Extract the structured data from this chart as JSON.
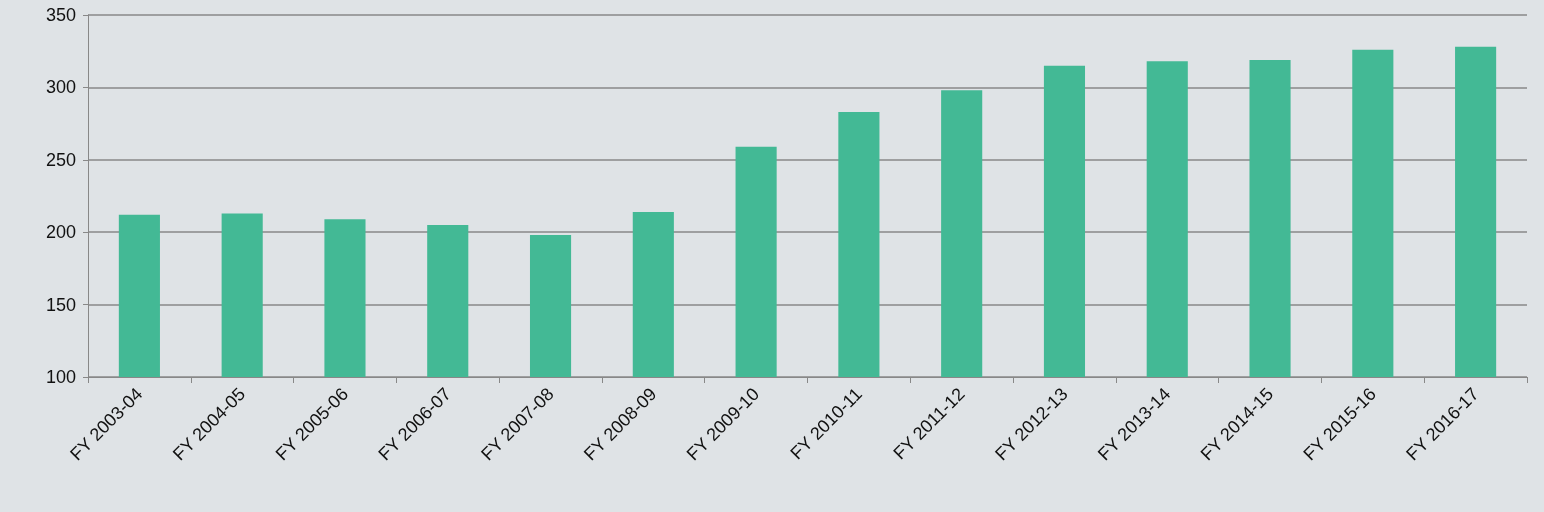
{
  "chart_data": {
    "type": "bar",
    "categories": [
      "FY 2003-04",
      "FY 2004-05",
      "FY 2005-06",
      "FY 2006-07",
      "FY 2007-08",
      "FY 2008-09",
      "FY 2009-10",
      "FY 2010-11",
      "FY 2011-12",
      "FY 2012-13",
      "FY 2013-14",
      "FY 2014-15",
      "FY 2015-16",
      "FY 2016-17"
    ],
    "values": [
      212,
      213,
      209,
      205,
      198,
      214,
      259,
      283,
      298,
      315,
      318,
      319,
      326,
      328
    ],
    "color": "#43b995",
    "ylim": [
      100,
      350
    ],
    "yticks": [
      100,
      150,
      200,
      250,
      300,
      350
    ],
    "grid": true
  }
}
